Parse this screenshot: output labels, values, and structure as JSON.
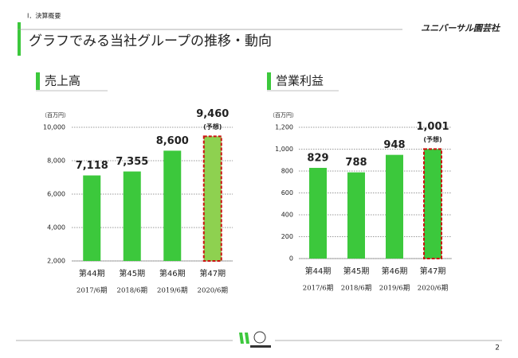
{
  "slide": {
    "section": "I．決算概要",
    "title": "グラフでみる当社グループの推移・動向",
    "company": "ユニバーサル園芸社",
    "page": "2"
  },
  "chart_data": [
    {
      "type": "bar",
      "title": "売上高",
      "unit": "（百万円）",
      "categories": [
        "第44期",
        "第45期",
        "第46期",
        "第47期"
      ],
      "periods": [
        "2017/6期",
        "2018/6期",
        "2019/6期",
        "2020/6期"
      ],
      "values": [
        7118,
        7355,
        8600,
        9460
      ],
      "value_labels": [
        "7,118",
        "7,355",
        "8,600",
        "9,460"
      ],
      "annotation": {
        "label": "(予想)",
        "category": "第47期"
      },
      "color": "#3cc83c",
      "forecast_color": "#8ed150",
      "forecast_border": "#cc1111",
      "ylim": [
        2000,
        10000
      ],
      "yticks": [
        {
          "value": 2000,
          "label": "2,000"
        },
        {
          "value": 4000,
          "label": "4,000"
        },
        {
          "value": 6000,
          "label": "6,000"
        },
        {
          "value": 8000,
          "label": "8,000"
        },
        {
          "value": 10000,
          "label": "10,000"
        }
      ],
      "grid": true
    },
    {
      "type": "bar",
      "title": "営業利益",
      "unit": "（百万円）",
      "categories": [
        "第44期",
        "第45期",
        "第46期",
        "第47期"
      ],
      "periods": [
        "2017/6期",
        "2018/6期",
        "2019/6期",
        "2020/6期"
      ],
      "values": [
        829,
        788,
        948,
        1001
      ],
      "value_labels": [
        "829",
        "788",
        "948",
        "1,001"
      ],
      "annotation": {
        "label": "(予想)",
        "category": "第47期"
      },
      "color": "#3cc83c",
      "forecast_color": "#3cc83c",
      "forecast_border": "#cc1111",
      "ylim": [
        0,
        1200
      ],
      "yticks": [
        0,
        200,
        400,
        600,
        800,
        {
          "value": 1000,
          "label": "1,000"
        },
        {
          "value": 1200,
          "label": "1,200"
        }
      ],
      "grid": true
    }
  ]
}
